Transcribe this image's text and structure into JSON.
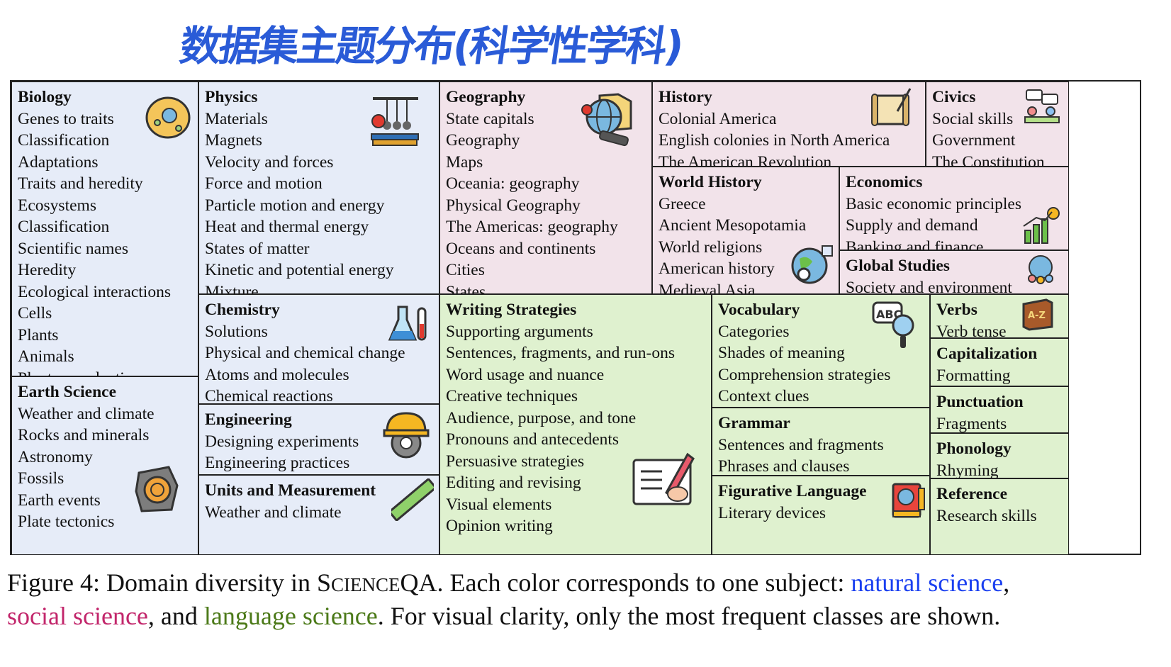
{
  "annotation": "数据集主题分布(科学性学科)",
  "cells": {
    "biology": {
      "title": "Biology",
      "items": [
        "Genes to traits",
        "Classification",
        "Adaptations",
        "Traits and heredity",
        "Ecosystems",
        "Classification",
        "Scientific names",
        "Heredity",
        "Ecological interactions",
        "Cells",
        "Plants",
        "Animals",
        "Plant reproduction"
      ]
    },
    "earth": {
      "title": "Earth Science",
      "items": [
        "Weather and climate",
        "Rocks and minerals",
        "Astronomy",
        "Fossils",
        "Earth events",
        "Plate tectonics"
      ]
    },
    "physics": {
      "title": "Physics",
      "items": [
        "Materials",
        "Magnets",
        "Velocity and forces",
        "Force and motion",
        "Particle motion and energy",
        "Heat and thermal energy",
        "States of matter",
        "Kinetic and potential energy",
        "Mixture"
      ]
    },
    "chemistry": {
      "title": "Chemistry",
      "items": [
        "Solutions",
        "Physical and chemical change",
        "Atoms and molecules",
        "Chemical reactions"
      ]
    },
    "engineering": {
      "title": "Engineering",
      "items": [
        "Designing experiments",
        "Engineering practices"
      ]
    },
    "units": {
      "title": "Units and Measurement",
      "items": [
        "Weather and climate"
      ]
    },
    "geography": {
      "title": "Geography",
      "items": [
        "State capitals",
        "Geography",
        "Maps",
        "Oceania: geography",
        "Physical Geography",
        "The Americas: geography",
        "Oceans and continents",
        "Cities",
        "States"
      ]
    },
    "history": {
      "title": "History",
      "items": [
        "Colonial America",
        "English colonies in North America",
        "The American Revolution"
      ]
    },
    "civics": {
      "title": "Civics",
      "items": [
        "Social skills",
        "Government",
        "The Constitution"
      ]
    },
    "world": {
      "title": "World History",
      "items": [
        "Greece",
        "Ancient Mesopotamia",
        "World religions",
        "American history",
        "Medieval Asia"
      ]
    },
    "economics": {
      "title": "Economics",
      "items": [
        "Basic economic principles",
        "Supply and demand",
        "Banking and finance"
      ]
    },
    "global": {
      "title": "Global Studies",
      "items": [
        "Society and environment"
      ]
    },
    "writing": {
      "title": "Writing Strategies",
      "items": [
        "Supporting arguments",
        "Sentences, fragments, and run-ons",
        "Word usage and nuance",
        "Creative techniques",
        "Audience, purpose, and tone",
        "Pronouns and antecedents",
        "Persuasive strategies",
        "Editing and revising",
        "Visual elements",
        "Opinion writing"
      ]
    },
    "vocab": {
      "title": "Vocabulary",
      "items": [
        "Categories",
        "Shades of meaning",
        "Comprehension strategies",
        "Context clues"
      ]
    },
    "grammar": {
      "title": "Grammar",
      "items": [
        "Sentences and fragments",
        "Phrases and clauses"
      ]
    },
    "figurative": {
      "title": "Figurative Language",
      "items": [
        "Literary devices"
      ]
    },
    "verbs": {
      "title": "Verbs",
      "items": [
        "Verb tense"
      ]
    },
    "capitalization": {
      "title": "Capitalization",
      "items": [
        "Formatting"
      ]
    },
    "punctuation": {
      "title": "Punctuation",
      "items": [
        "Fragments"
      ]
    },
    "phonology": {
      "title": "Phonology",
      "items": [
        "Rhyming"
      ]
    },
    "reference": {
      "title": "Reference",
      "items": [
        "Research skills"
      ]
    }
  },
  "caption": {
    "prefix": "Figure 4: Domain diversity in ",
    "sc_S": "S",
    "sc_CIENCE": "CIENCE",
    "sc_QA": "QA",
    "mid": ". Each color corresponds to one subject: ",
    "natural": "natural science",
    "comma1": ",",
    "social": "social science",
    "and": ", and ",
    "language": "language science",
    "suffix": ". For visual clarity, only the most frequent classes are shown."
  },
  "colors": {
    "natural": "#e6ecf8",
    "social": "#f2e3ea",
    "language": "#dff1cf",
    "natural_text": "#1a3ff0",
    "social_text": "#c2266b",
    "language_text": "#4c7a19"
  }
}
